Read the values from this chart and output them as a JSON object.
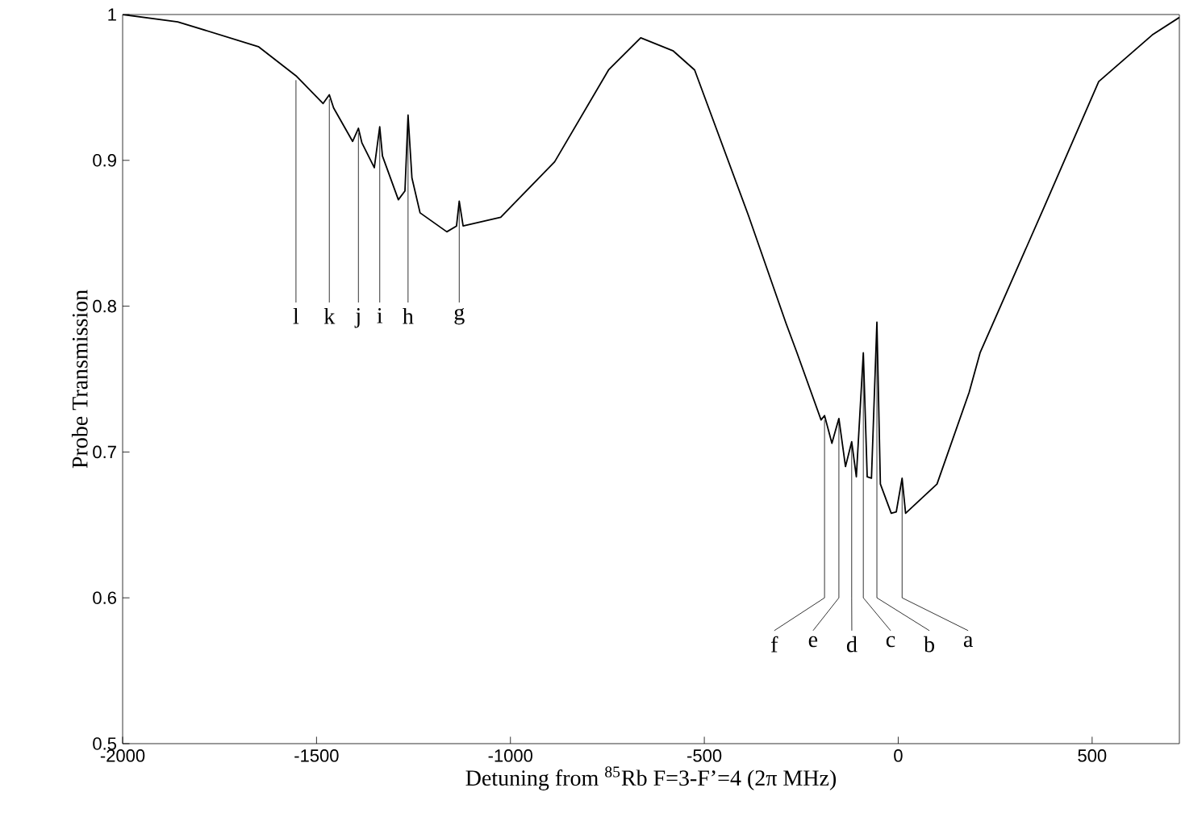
{
  "chart_data": {
    "type": "line",
    "xlabel": "Detuning from $^{85}$Rb F=3-F’=4 (2π MHz)",
    "ylabel": "Probe Transmission",
    "xlim": [
      -2000,
      725
    ],
    "ylim": [
      0.5,
      1
    ],
    "xticks": [
      -2000,
      -1500,
      -1000,
      -500,
      0,
      500
    ],
    "yticks": [
      0.5,
      0.6,
      0.7,
      0.8,
      0.9,
      1
    ],
    "series": [
      {
        "color": "#000000",
        "x": [
          -2000,
          -1858,
          -1650,
          -1553,
          -1483,
          -1467,
          -1456,
          -1407,
          -1392,
          -1383,
          -1351,
          -1337,
          -1330,
          -1289,
          -1272,
          -1264,
          -1254,
          -1233,
          -1164,
          -1139,
          -1132,
          -1122,
          -1025,
          -886,
          -747,
          -664,
          -580,
          -525,
          -386,
          -289,
          -261,
          -199,
          -190,
          -171,
          -153,
          -136,
          -120,
          -108,
          -90,
          -80,
          -69,
          -55,
          -46,
          -18,
          -5,
          10,
          19,
          100,
          183,
          211,
          378,
          517,
          655,
          725
        ],
        "values": [
          1.0,
          0.995,
          0.978,
          0.958,
          0.939,
          0.945,
          0.936,
          0.913,
          0.922,
          0.912,
          0.895,
          0.923,
          0.903,
          0.873,
          0.879,
          0.931,
          0.888,
          0.864,
          0.851,
          0.855,
          0.872,
          0.855,
          0.861,
          0.899,
          0.962,
          0.984,
          0.975,
          0.962,
          0.862,
          0.788,
          0.768,
          0.722,
          0.725,
          0.706,
          0.723,
          0.69,
          0.707,
          0.683,
          0.768,
          0.683,
          0.682,
          0.789,
          0.678,
          0.658,
          0.659,
          0.682,
          0.658,
          0.678,
          0.741,
          0.768,
          0.869,
          0.954,
          0.986,
          0.998
        ]
      }
    ],
    "annotations": [
      {
        "text": "l",
        "x": -1553,
        "y": 0.958
      },
      {
        "text": "k",
        "x": -1467,
        "y": 0.945
      },
      {
        "text": "j",
        "x": -1392,
        "y": 0.922
      },
      {
        "text": "i",
        "x": -1337,
        "y": 0.923
      },
      {
        "text": "h",
        "x": -1264,
        "y": 0.931
      },
      {
        "text": "g",
        "x": -1132,
        "y": 0.872
      },
      {
        "text": "f",
        "x": -190,
        "y": 0.725
      },
      {
        "text": "e",
        "x": -153,
        "y": 0.723
      },
      {
        "text": "d",
        "x": -120,
        "y": 0.707
      },
      {
        "text": "c",
        "x": -90,
        "y": 0.768
      },
      {
        "text": "b",
        "x": -55,
        "y": 0.789
      },
      {
        "text": "a",
        "x": 10,
        "y": 0.682
      }
    ]
  }
}
